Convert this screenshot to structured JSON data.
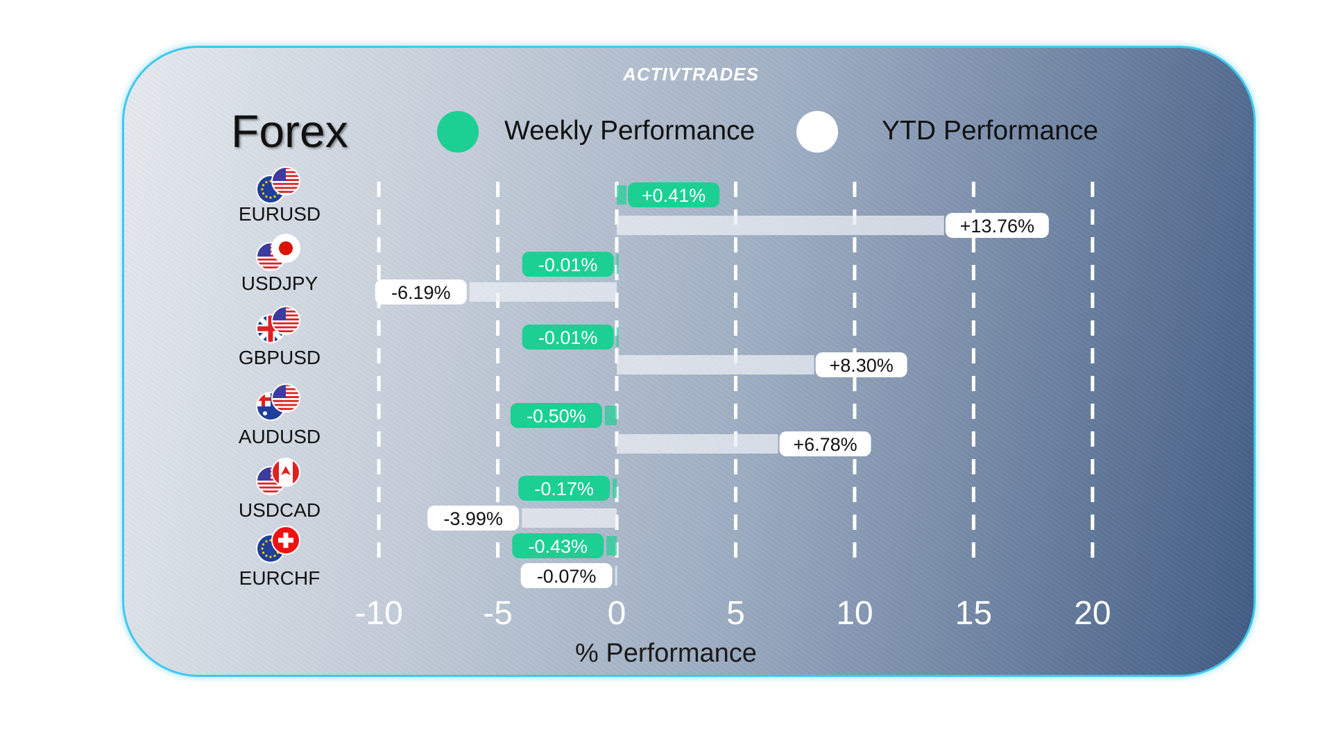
{
  "logo": "ActivTrades",
  "title": "Forex",
  "chart_data": {
    "type": "bar",
    "orientation": "horizontal",
    "categories": [
      "EURUSD",
      "USDJPY",
      "GBPUSD",
      "AUDUSD",
      "USDCAD",
      "EURCHF"
    ],
    "series": [
      {
        "name": "Weekly Performance",
        "color": "#1ccf93",
        "values": [
          0.41,
          -0.01,
          -0.01,
          -0.5,
          -0.17,
          -0.43
        ],
        "labels": [
          "+0.41%",
          "-0.01%",
          "-0.01%",
          "-0.50%",
          "-0.17%",
          "-0.43%"
        ]
      },
      {
        "name": "YTD Performance",
        "color": "#ffffff",
        "values": [
          13.76,
          -6.19,
          8.3,
          6.78,
          -3.99,
          -0.07
        ],
        "labels": [
          "+13.76%",
          "-6.19%",
          "+8.30%",
          "+6.78%",
          "-3.99%",
          "-0.07%"
        ]
      }
    ],
    "xlim": [
      -10,
      20
    ],
    "xticks": [
      "-10",
      "-5",
      "0",
      "5",
      "10",
      "15",
      "20"
    ],
    "xlabel": "% Performance",
    "grid": "vertical dashed",
    "legend": "top"
  }
}
